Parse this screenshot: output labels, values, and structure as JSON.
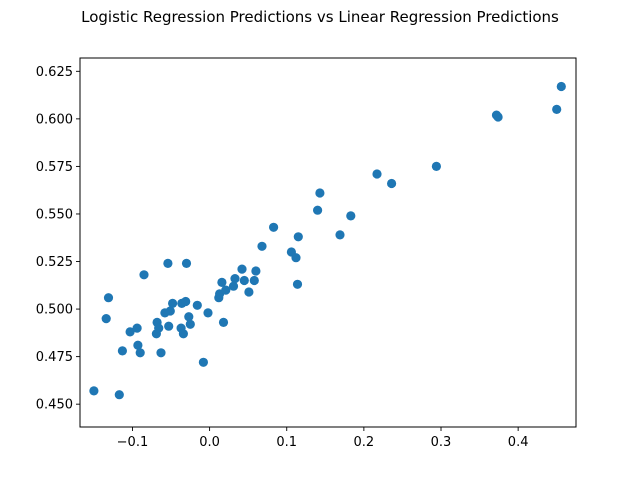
{
  "chart_data": {
    "type": "scatter",
    "title": "Logistic Regression Predictions vs Linear Regression Predictions",
    "xlabel": "",
    "ylabel": "",
    "xlim": [
      -0.168,
      0.475
    ],
    "ylim": [
      0.438,
      0.632
    ],
    "xticks": [
      -0.1,
      0.0,
      0.1,
      0.2,
      0.3,
      0.4
    ],
    "xtick_labels": [
      "−0.1",
      "0.0",
      "0.1",
      "0.2",
      "0.3",
      "0.4"
    ],
    "yticks": [
      0.45,
      0.475,
      0.5,
      0.525,
      0.55,
      0.575,
      0.6,
      0.625
    ],
    "ytick_labels": [
      "0.450",
      "0.475",
      "0.500",
      "0.525",
      "0.550",
      "0.575",
      "0.600",
      "0.625"
    ],
    "grid": false,
    "legend": "none",
    "marker_color": "#1f77b4",
    "points": [
      [
        -0.15,
        0.457
      ],
      [
        -0.117,
        0.455
      ],
      [
        -0.113,
        0.478
      ],
      [
        -0.134,
        0.495
      ],
      [
        -0.131,
        0.506
      ],
      [
        -0.103,
        0.488
      ],
      [
        -0.094,
        0.49
      ],
      [
        -0.093,
        0.481
      ],
      [
        -0.09,
        0.477
      ],
      [
        -0.085,
        0.518
      ],
      [
        -0.069,
        0.487
      ],
      [
        -0.068,
        0.493
      ],
      [
        -0.066,
        0.49
      ],
      [
        -0.063,
        0.477
      ],
      [
        -0.058,
        0.498
      ],
      [
        -0.054,
        0.524
      ],
      [
        -0.053,
        0.491
      ],
      [
        -0.051,
        0.499
      ],
      [
        -0.048,
        0.503
      ],
      [
        -0.037,
        0.49
      ],
      [
        -0.036,
        0.503
      ],
      [
        -0.034,
        0.487
      ],
      [
        -0.031,
        0.504
      ],
      [
        -0.03,
        0.524
      ],
      [
        -0.027,
        0.496
      ],
      [
        -0.025,
        0.492
      ],
      [
        -0.016,
        0.502
      ],
      [
        -0.008,
        0.472
      ],
      [
        -0.002,
        0.498
      ],
      [
        0.012,
        0.506
      ],
      [
        0.013,
        0.508
      ],
      [
        0.016,
        0.514
      ],
      [
        0.018,
        0.493
      ],
      [
        0.021,
        0.51
      ],
      [
        0.031,
        0.512
      ],
      [
        0.033,
        0.516
      ],
      [
        0.042,
        0.521
      ],
      [
        0.045,
        0.515
      ],
      [
        0.051,
        0.509
      ],
      [
        0.058,
        0.515
      ],
      [
        0.06,
        0.52
      ],
      [
        0.068,
        0.533
      ],
      [
        0.083,
        0.543
      ],
      [
        0.106,
        0.53
      ],
      [
        0.112,
        0.527
      ],
      [
        0.115,
        0.538
      ],
      [
        0.114,
        0.513
      ],
      [
        0.14,
        0.552
      ],
      [
        0.143,
        0.561
      ],
      [
        0.169,
        0.539
      ],
      [
        0.183,
        0.549
      ],
      [
        0.217,
        0.571
      ],
      [
        0.236,
        0.566
      ],
      [
        0.294,
        0.575
      ],
      [
        0.372,
        0.602
      ],
      [
        0.374,
        0.601
      ],
      [
        0.45,
        0.605
      ],
      [
        0.456,
        0.617
      ]
    ]
  }
}
